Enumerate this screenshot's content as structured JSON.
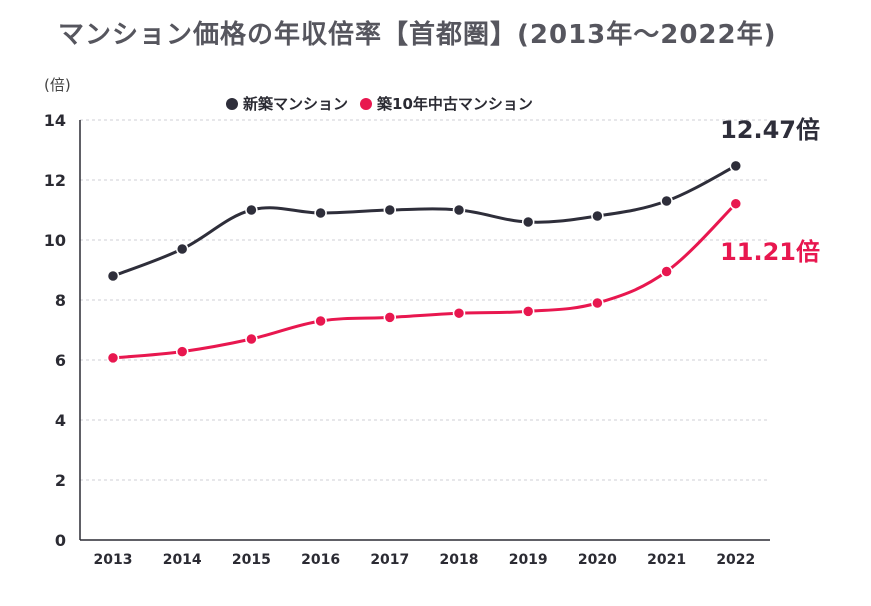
{
  "chart_data": {
    "type": "line",
    "title": "マンション価格の年収倍率【首都圏】(2013年～2022年)",
    "ylabel": "(倍)",
    "xlabel": "",
    "ylim": [
      0,
      14
    ],
    "yticks": [
      "0",
      "2",
      "4",
      "6",
      "8",
      "10",
      "12",
      "14"
    ],
    "categories": [
      "2013",
      "2014",
      "2015",
      "2016",
      "2017",
      "2018",
      "2019",
      "2020",
      "2021",
      "2022"
    ],
    "series": [
      {
        "name": "新築マンション",
        "color": "#2e2e3a",
        "values": [
          8.8,
          9.7,
          11.0,
          10.9,
          11.0,
          11.0,
          10.6,
          10.8,
          11.3,
          12.47
        ],
        "end_label": "12.47倍"
      },
      {
        "name": "築10年中古マンション",
        "color": "#e8174f",
        "values": [
          6.07,
          6.28,
          6.7,
          7.3,
          7.42,
          7.56,
          7.62,
          7.9,
          8.95,
          11.21
        ],
        "end_label": "11.21倍"
      }
    ],
    "grid": true,
    "legend_position": "top-center"
  }
}
